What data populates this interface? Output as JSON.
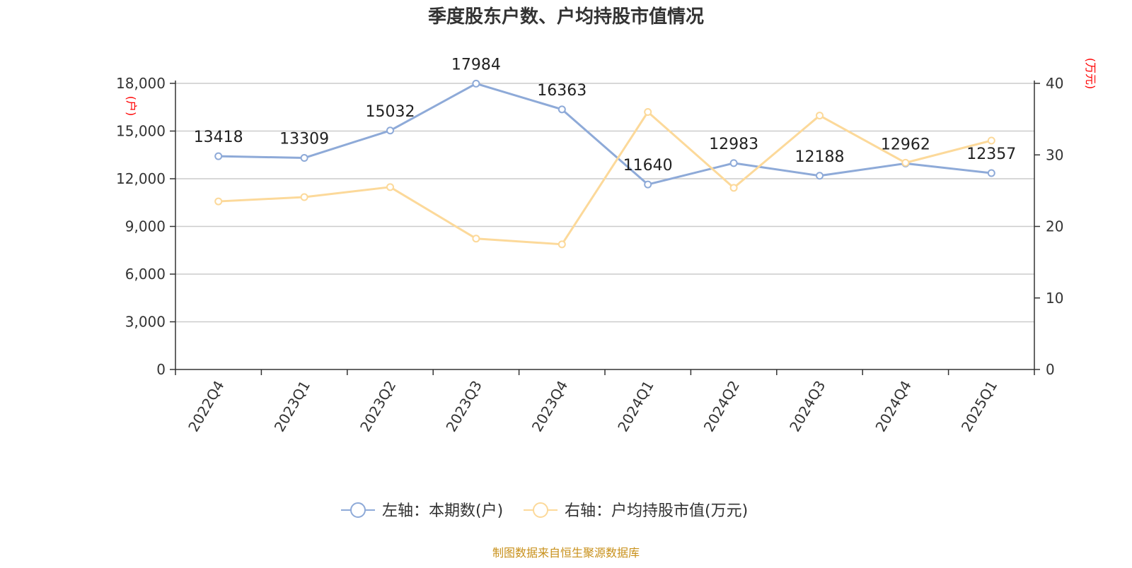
{
  "chart_data": {
    "type": "line",
    "title": "季度股东户数、户均持股市值情况",
    "categories": [
      "2022Q4",
      "2023Q1",
      "2023Q2",
      "2023Q3",
      "2023Q4",
      "2024Q1",
      "2024Q2",
      "2024Q3",
      "2024Q4",
      "2025Q1"
    ],
    "y_left": {
      "unit": "(户)",
      "range": [
        0,
        18000
      ],
      "ticks": [
        "0",
        "3,000",
        "6,000",
        "9,000",
        "12,000",
        "15,000",
        "18,000"
      ]
    },
    "y_right": {
      "unit": "(万元)",
      "range": [
        0,
        40
      ],
      "ticks": [
        "0",
        "10",
        "20",
        "30",
        "40"
      ]
    },
    "grid": true,
    "legend_position": "bottom-center",
    "series": [
      {
        "name": "左轴：本期数(户)",
        "axis": "left",
        "color": "#8eaad8",
        "values": [
          13418,
          13309,
          15032,
          17984,
          16363,
          11640,
          12983,
          12188,
          12962,
          12357
        ],
        "labels": [
          "13418",
          "13309",
          "15032",
          "17984",
          "16363",
          "11640",
          "12983",
          "12188",
          "12962",
          "12357"
        ]
      },
      {
        "name": "右轴：户均持股市值(万元)",
        "axis": "right",
        "color": "#fcd99a",
        "values": [
          23.5,
          24.1,
          25.5,
          18.3,
          17.5,
          36.0,
          25.4,
          35.5,
          28.9,
          32.0
        ]
      }
    ],
    "source": "制图数据来自恒生聚源数据库"
  }
}
